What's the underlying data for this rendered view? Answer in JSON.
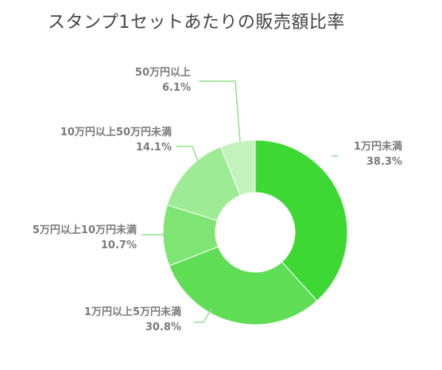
{
  "chart_data": {
    "type": "pie",
    "variant": "donut",
    "title": "スタンプ1セットあたりの販売額比率",
    "slices": [
      {
        "label": "1万円未満",
        "value": 38.3,
        "display": "38.3%",
        "color": "#3dd834"
      },
      {
        "label": "1万円以上5万円未満",
        "value": 30.8,
        "display": "30.8%",
        "color": "#5fde55"
      },
      {
        "label": "5万円以上10万円未満",
        "value": 10.7,
        "display": "10.7%",
        "color": "#7ee474"
      },
      {
        "label": "10万円以上50万円未満",
        "value": 14.1,
        "display": "14.1%",
        "color": "#9deb94"
      },
      {
        "label": "50万円以上",
        "value": 6.1,
        "display": "6.1%",
        "color": "#c3f2bd"
      }
    ],
    "leader_line_color": "#8fe386"
  }
}
